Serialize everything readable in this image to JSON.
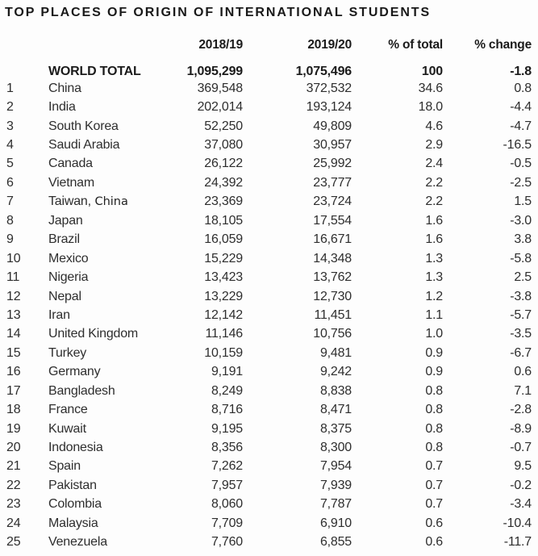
{
  "title": "TOP PLACES OF ORIGIN OF INTERNATIONAL STUDENTS",
  "colors": {
    "background": "#fdfdfd",
    "text": "#2e2e2e",
    "bold_text": "#1b1b1b"
  },
  "chart_data": {
    "type": "table",
    "title": "TOP PLACES OF ORIGIN OF INTERNATIONAL STUDENTS",
    "column_headers": [
      "",
      "",
      "2018/19",
      "2019/20",
      "% of total",
      "% change"
    ],
    "total_row": {
      "place": "WORLD TOTAL",
      "y1819": "1,095,299",
      "y1920": "1,075,496",
      "pct_total": "100",
      "pct_change": "-1.8"
    },
    "rows": [
      {
        "rank": "1",
        "place": "China",
        "y1819": "369,548",
        "y1920": "372,532",
        "pct_total": "34.6",
        "pct_change": "0.8"
      },
      {
        "rank": "2",
        "place": "India",
        "y1819": "202,014",
        "y1920": "193,124",
        "pct_total": "18.0",
        "pct_change": "-4.4"
      },
      {
        "rank": "3",
        "place": "South Korea",
        "y1819": "52,250",
        "y1920": "49,809",
        "pct_total": "4.6",
        "pct_change": "-4.7"
      },
      {
        "rank": "4",
        "place": "Saudi Arabia",
        "y1819": "37,080",
        "y1920": "30,957",
        "pct_total": "2.9",
        "pct_change": "-16.5"
      },
      {
        "rank": "5",
        "place": "Canada",
        "y1819": "26,122",
        "y1920": "25,992",
        "pct_total": "2.4",
        "pct_change": "-0.5"
      },
      {
        "rank": "6",
        "place": "Vietnam",
        "y1819": "24,392",
        "y1920": "23,777",
        "pct_total": "2.2",
        "pct_change": "-2.5"
      },
      {
        "rank": "7",
        "place": "Taiwan, China",
        "place_primary": "Taiwan,",
        "place_secondary": " China",
        "y1819": "23,369",
        "y1920": "23,724",
        "pct_total": "2.2",
        "pct_change": "1.5"
      },
      {
        "rank": "8",
        "place": "Japan",
        "y1819": "18,105",
        "y1920": "17,554",
        "pct_total": "1.6",
        "pct_change": "-3.0"
      },
      {
        "rank": "9",
        "place": "Brazil",
        "y1819": "16,059",
        "y1920": "16,671",
        "pct_total": "1.6",
        "pct_change": "3.8"
      },
      {
        "rank": "10",
        "place": "Mexico",
        "y1819": "15,229",
        "y1920": "14,348",
        "pct_total": "1.3",
        "pct_change": "-5.8"
      },
      {
        "rank": "11",
        "place": "Nigeria",
        "y1819": "13,423",
        "y1920": "13,762",
        "pct_total": "1.3",
        "pct_change": "2.5"
      },
      {
        "rank": "12",
        "place": "Nepal",
        "y1819": "13,229",
        "y1920": "12,730",
        "pct_total": "1.2",
        "pct_change": "-3.8"
      },
      {
        "rank": "13",
        "place": "Iran",
        "y1819": "12,142",
        "y1920": "11,451",
        "pct_total": "1.1",
        "pct_change": "-5.7"
      },
      {
        "rank": "14",
        "place": "United Kingdom",
        "y1819": "11,146",
        "y1920": "10,756",
        "pct_total": "1.0",
        "pct_change": "-3.5"
      },
      {
        "rank": "15",
        "place": "Turkey",
        "y1819": "10,159",
        "y1920": "9,481",
        "pct_total": "0.9",
        "pct_change": "-6.7"
      },
      {
        "rank": "16",
        "place": "Germany",
        "y1819": "9,191",
        "y1920": "9,242",
        "pct_total": "0.9",
        "pct_change": "0.6"
      },
      {
        "rank": "17",
        "place": "Bangladesh",
        "y1819": "8,249",
        "y1920": "8,838",
        "pct_total": "0.8",
        "pct_change": "7.1"
      },
      {
        "rank": "18",
        "place": "France",
        "y1819": "8,716",
        "y1920": "8,471",
        "pct_total": "0.8",
        "pct_change": "-2.8"
      },
      {
        "rank": "19",
        "place": "Kuwait",
        "y1819": "9,195",
        "y1920": "8,375",
        "pct_total": "0.8",
        "pct_change": "-8.9"
      },
      {
        "rank": "20",
        "place": "Indonesia",
        "y1819": "8,356",
        "y1920": "8,300",
        "pct_total": "0.8",
        "pct_change": "-0.7"
      },
      {
        "rank": "21",
        "place": "Spain",
        "y1819": "7,262",
        "y1920": "7,954",
        "pct_total": "0.7",
        "pct_change": "9.5"
      },
      {
        "rank": "22",
        "place": "Pakistan",
        "y1819": "7,957",
        "y1920": "7,939",
        "pct_total": "0.7",
        "pct_change": "-0.2"
      },
      {
        "rank": "23",
        "place": "Colombia",
        "y1819": "8,060",
        "y1920": "7,787",
        "pct_total": "0.7",
        "pct_change": "-3.4"
      },
      {
        "rank": "24",
        "place": "Malaysia",
        "y1819": "7,709",
        "y1920": "6,910",
        "pct_total": "0.6",
        "pct_change": "-10.4"
      },
      {
        "rank": "25",
        "place": "Venezuela",
        "y1819": "7,760",
        "y1920": "6,855",
        "pct_total": "0.6",
        "pct_change": "-11.7"
      }
    ]
  }
}
